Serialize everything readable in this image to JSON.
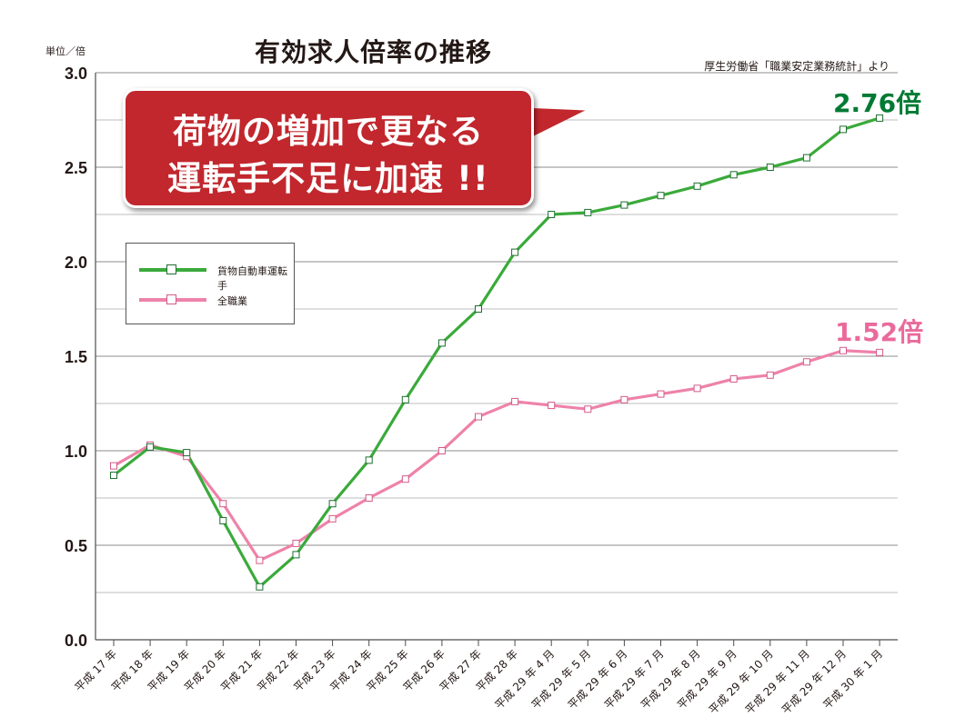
{
  "title": "有効求人倍率の推移",
  "unit_label": "単位／倍",
  "source": "厚生労働省「職業安定業務統計」より",
  "callout": {
    "line1": "荷物の増加で更なる",
    "line2": "運転手不足に加速 !!"
  },
  "end_labels": {
    "freight": "2.76倍",
    "all": "1.52倍"
  },
  "colors": {
    "freight": "#3aaa3a",
    "all": "#ee82a9",
    "callout": "#c1272d"
  },
  "chart_data": {
    "type": "line",
    "title": "有効求人倍率の推移",
    "ylabel": "単位／倍",
    "xlabel": "",
    "ylim": [
      0,
      3.0
    ],
    "y_ticks": [
      "0.0",
      "0.5",
      "1.0",
      "1.5",
      "2.0",
      "2.5",
      "3.0"
    ],
    "grid": true,
    "legend_position": "upper-left",
    "categories": [
      "平成 17 年",
      "平成 18 年",
      "平成 19 年",
      "平成 20 年",
      "平成 21 年",
      "平成 22 年",
      "平成 23 年",
      "平成 24 年",
      "平成 25 年",
      "平成 26 年",
      "平成 27 年",
      "平成 28 年",
      "平成 29 年 4 月",
      "平成 29 年 5 月",
      "平成 29 年 6 月",
      "平成 29 年 7 月",
      "平成 29 年 8 月",
      "平成 29 年 9 月",
      "平成 29 年 10 月",
      "平成 29 年 11 月",
      "平成 29 年 12 月",
      "平成 30 年 1 月"
    ],
    "series": [
      {
        "name": "貨物自動車運転手",
        "color": "#3aaa3a",
        "values": [
          0.87,
          1.02,
          0.99,
          0.63,
          0.28,
          0.45,
          0.72,
          0.95,
          1.27,
          1.57,
          1.75,
          2.05,
          2.25,
          2.26,
          2.3,
          2.35,
          2.4,
          2.46,
          2.5,
          2.55,
          2.7,
          2.76
        ]
      },
      {
        "name": "全職業",
        "color": "#ee82a9",
        "values": [
          0.92,
          1.03,
          0.97,
          0.72,
          0.42,
          0.51,
          0.64,
          0.75,
          0.85,
          1.0,
          1.18,
          1.26,
          1.24,
          1.22,
          1.27,
          1.3,
          1.33,
          1.38,
          1.4,
          1.47,
          1.53,
          1.52
        ]
      }
    ]
  }
}
